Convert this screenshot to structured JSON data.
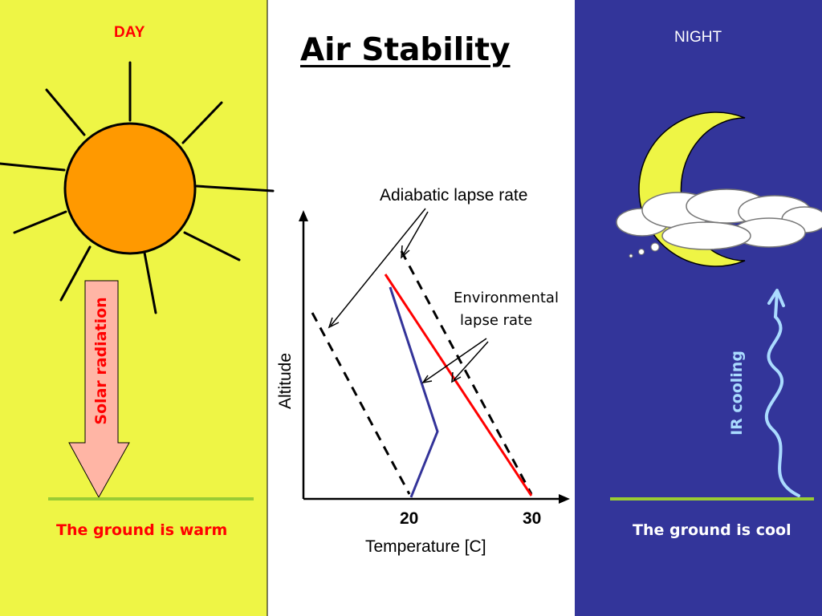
{
  "title": "Air Stability",
  "day": {
    "label": "DAY",
    "arrow_label": "Solar radiation",
    "ground_text": "The ground is warm"
  },
  "night": {
    "label": "NIGHT",
    "wave_label": "IR cooling",
    "ground_text": "The ground is cool"
  },
  "graph": {
    "adiabatic_label": "Adiabatic lapse rate",
    "environmental_label_line1": "Environmental",
    "environmental_label_line2": "lapse rate",
    "x_axis_label": "Temperature  [C]",
    "y_axis_label": "Altitude",
    "x_ticks": [
      "20",
      "30"
    ]
  },
  "colors": {
    "day_panel": "#eef545",
    "night_panel": "#33359a",
    "sun_fill": "#ff9900",
    "arrow_fill": "#ffb5a5",
    "ground_line": "#99cc33",
    "red_line": "#ff0000",
    "blue_line": "#333399",
    "moon": "#eef545",
    "ir_wave": "#aadbff"
  }
}
